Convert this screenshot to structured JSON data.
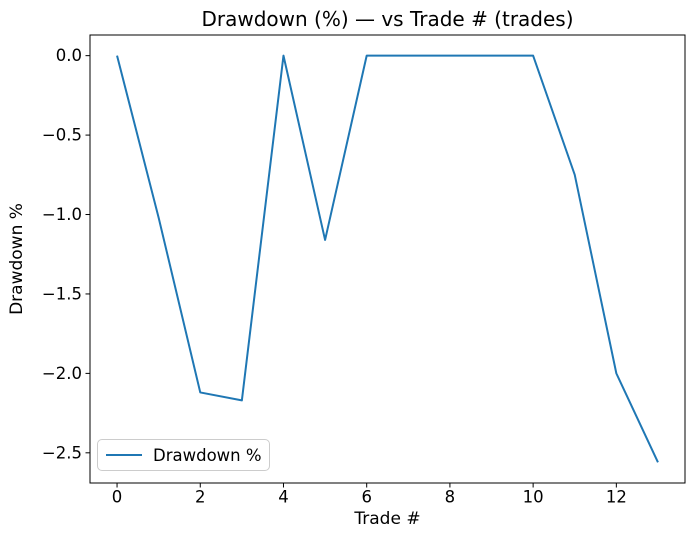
{
  "chart_data": {
    "type": "line",
    "title": "Drawdown (%) — vs Trade # (trades)",
    "xlabel": "Trade #",
    "ylabel": "Drawdown %",
    "x": [
      0,
      1,
      2,
      3,
      4,
      5,
      6,
      7,
      8,
      9,
      10,
      11,
      12,
      13
    ],
    "series": [
      {
        "name": "Drawdown %",
        "color": "#1f77b4",
        "values": [
          0.0,
          -1.02,
          -2.12,
          -2.17,
          0.0,
          -1.16,
          0.0,
          0.0,
          0.0,
          0.0,
          0.0,
          -0.75,
          -2.0,
          -2.56
        ]
      }
    ],
    "xlim": [
      -0.65,
      13.65
    ],
    "ylim": [
      -2.69,
      0.13
    ],
    "xticks": [
      0,
      2,
      4,
      6,
      8,
      10,
      12
    ],
    "yticks": [
      0.0,
      -0.5,
      -1.0,
      -1.5,
      -2.0,
      -2.5
    ],
    "grid": false,
    "legend": {
      "position": "lower left",
      "entries": [
        "Drawdown %"
      ]
    }
  },
  "colors": {
    "line": "#1f77b4",
    "text": "#000000",
    "spine": "#000000",
    "legend_border": "#cccccc",
    "background": "#ffffff"
  }
}
